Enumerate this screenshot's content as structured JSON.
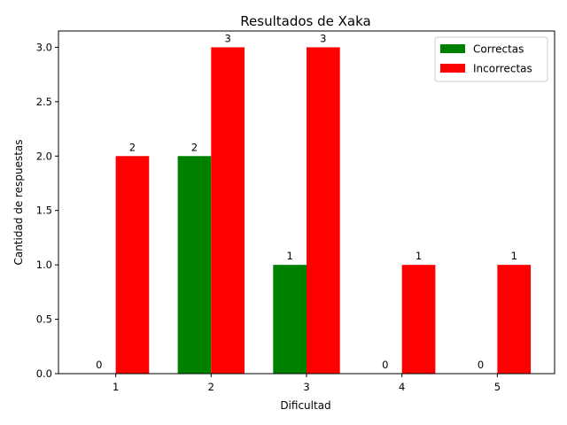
{
  "chart_data": {
    "type": "bar",
    "title": "Resultados de Xaka",
    "xlabel": "Dificultad",
    "ylabel": "Cantidad de respuestas",
    "categories": [
      "1",
      "2",
      "3",
      "4",
      "5"
    ],
    "series": [
      {
        "name": "Correctas",
        "values": [
          0,
          2,
          1,
          0,
          0
        ],
        "color": "#008000"
      },
      {
        "name": "Incorrectas",
        "values": [
          2,
          3,
          3,
          1,
          1
        ],
        "color": "#ff0000"
      }
    ],
    "ylim": [
      0,
      3.15
    ],
    "yticks": [
      "0.0",
      "0.5",
      "1.0",
      "1.5",
      "2.0",
      "2.5",
      "3.0"
    ],
    "grid": false,
    "legend_position": "top-right"
  }
}
